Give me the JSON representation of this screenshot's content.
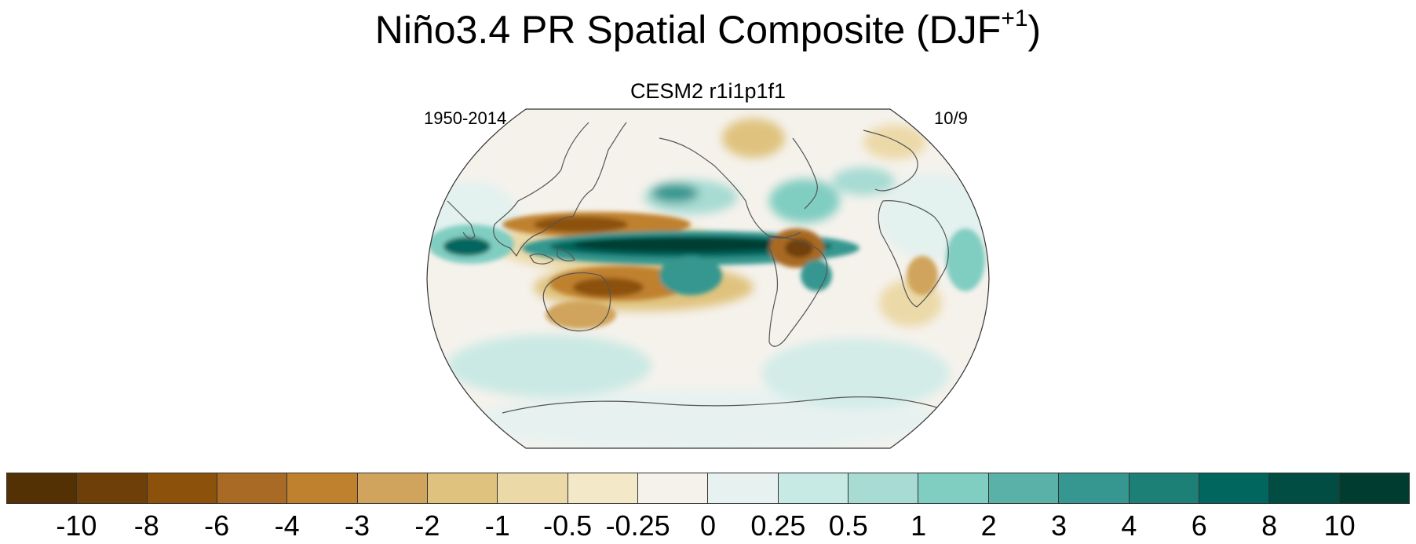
{
  "header": {
    "title_main": "Niño3.4 PR Spatial Composite (DJF",
    "title_sup": "+1",
    "title_end": ")",
    "subtitle": "CESM2 r1i1p1f1",
    "period": "1950-2014",
    "count": "10/9"
  },
  "colorbar": {
    "colors": [
      "#543005",
      "#6f3f0a",
      "#8c510a",
      "#a86a24",
      "#bf812d",
      "#d0a45c",
      "#dfc27d",
      "#ecd9a8",
      "#f3e8c8",
      "#f5f2ec",
      "#e7f2f0",
      "#c7eae5",
      "#a7dbd3",
      "#80cdc1",
      "#5ab1a7",
      "#35978f",
      "#1d8076",
      "#01665e",
      "#014d43",
      "#003c30"
    ],
    "labels": [
      "-10",
      "-8",
      "-6",
      "-4",
      "-3",
      "-2",
      "-1",
      "-0.5",
      "-0.25",
      "0",
      "0.25",
      "0.5",
      "1",
      "2",
      "3",
      "4",
      "6",
      "8",
      "10"
    ]
  },
  "map": {
    "projection": "Robinson",
    "center_longitude": "180",
    "features": [
      "equatorial-pacific-wet-band",
      "western-pacific-dry-band",
      "south-pacific-dry-band",
      "northern-south-america-dry",
      "indian-ocean-wet",
      "north-pacific-wet",
      "coastlines"
    ]
  }
}
